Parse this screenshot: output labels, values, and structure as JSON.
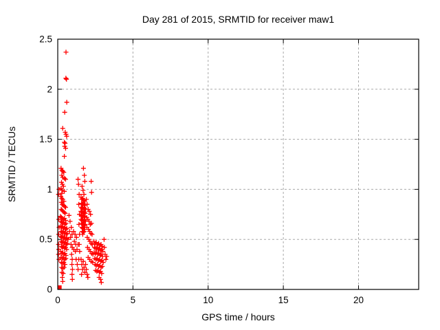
{
  "chart_data": {
    "type": "scatter",
    "title": "Day 281 of 2015, SRMTID for receiver maw1",
    "xlabel": "GPS time / hours",
    "ylabel": "SRMTID / TECUs",
    "xlim": [
      0,
      24
    ],
    "ylim": [
      0,
      2.5
    ],
    "xticks": {
      "values": [
        0,
        5,
        10,
        15,
        20
      ],
      "labels": [
        "0",
        "5",
        "10",
        "15",
        "20"
      ]
    },
    "yticks": {
      "values": [
        0,
        0.5,
        1,
        1.5,
        2,
        2.5
      ],
      "labels": [
        "0",
        "0.5",
        "1",
        "1.5",
        "2",
        "2.5"
      ]
    },
    "grid": true,
    "legend": "none",
    "marker": "plus",
    "marker_color": "#ff0000",
    "grid_color": "#a8a8a8",
    "border_color": "#000000",
    "origin_marker": {
      "type": "filled-square",
      "x": 0.12,
      "y": 0.02
    },
    "points": [
      [
        0.55,
        2.37
      ],
      [
        0.54,
        2.11
      ],
      [
        0.58,
        2.1
      ],
      [
        0.6,
        1.87
      ],
      [
        0.46,
        1.77
      ],
      [
        0.33,
        1.61
      ],
      [
        0.5,
        1.57
      ],
      [
        0.55,
        1.55
      ],
      [
        0.59,
        1.53
      ],
      [
        0.44,
        1.47
      ],
      [
        0.49,
        1.46
      ],
      [
        0.46,
        1.43
      ],
      [
        0.52,
        1.41
      ],
      [
        0.44,
        1.33
      ],
      [
        0.22,
        1.21
      ],
      [
        0.28,
        1.19
      ],
      [
        0.34,
        1.18
      ],
      [
        0.4,
        1.17
      ],
      [
        0.27,
        1.14
      ],
      [
        0.33,
        1.12
      ],
      [
        0.45,
        1.11
      ],
      [
        0.52,
        1.1
      ],
      [
        0.25,
        1.07
      ],
      [
        0.31,
        1.05
      ],
      [
        0.38,
        1.03
      ],
      [
        0.22,
        1.01
      ],
      [
        0.3,
        0.99
      ],
      [
        0.44,
        0.98
      ],
      [
        0.27,
        0.96
      ],
      [
        1.71,
        1.21
      ],
      [
        1.77,
        1.14
      ],
      [
        1.35,
        1.1
      ],
      [
        1.8,
        1.08
      ],
      [
        2.22,
        1.08
      ],
      [
        1.62,
        1.03
      ],
      [
        1.68,
        0.99
      ],
      [
        2.25,
        0.97
      ],
      [
        1.74,
        0.95
      ],
      [
        0.2,
        0.93
      ],
      [
        0.26,
        0.91
      ],
      [
        0.33,
        0.9
      ],
      [
        0.41,
        0.88
      ],
      [
        0.24,
        0.87
      ],
      [
        0.3,
        0.85
      ],
      [
        0.37,
        0.84
      ],
      [
        0.46,
        0.83
      ],
      [
        0.52,
        0.82
      ],
      [
        0.23,
        0.8
      ],
      [
        0.29,
        0.79
      ],
      [
        0.35,
        0.78
      ],
      [
        0.43,
        0.77
      ],
      [
        0.5,
        0.76
      ],
      [
        1.55,
        0.92
      ],
      [
        1.6,
        0.9
      ],
      [
        1.66,
        0.91
      ],
      [
        1.72,
        0.89
      ],
      [
        1.78,
        0.88
      ],
      [
        1.58,
        0.86
      ],
      [
        1.63,
        0.85
      ],
      [
        1.69,
        0.86
      ],
      [
        1.75,
        0.84
      ],
      [
        1.81,
        0.85
      ],
      [
        1.56,
        0.82
      ],
      [
        1.61,
        0.81
      ],
      [
        1.67,
        0.82
      ],
      [
        1.73,
        0.8
      ],
      [
        1.79,
        0.81
      ],
      [
        1.85,
        0.8
      ],
      [
        1.54,
        0.78
      ],
      [
        1.59,
        0.77
      ],
      [
        1.65,
        0.78
      ],
      [
        1.71,
        0.76
      ],
      [
        1.77,
        0.77
      ],
      [
        1.83,
        0.76
      ],
      [
        1.57,
        0.74
      ],
      [
        1.62,
        0.73
      ],
      [
        1.68,
        0.74
      ],
      [
        1.74,
        0.72
      ],
      [
        1.8,
        0.73
      ],
      [
        1.55,
        0.7
      ],
      [
        1.6,
        0.69
      ],
      [
        1.66,
        0.7
      ],
      [
        1.72,
        0.68
      ],
      [
        1.78,
        0.69
      ],
      [
        1.84,
        0.68
      ],
      [
        1.58,
        0.66
      ],
      [
        1.64,
        0.65
      ],
      [
        1.7,
        0.66
      ],
      [
        1.76,
        0.64
      ],
      [
        1.82,
        0.65
      ],
      [
        1.61,
        0.62
      ],
      [
        1.67,
        0.61
      ],
      [
        1.73,
        0.62
      ],
      [
        1.79,
        0.6
      ],
      [
        1.63,
        0.58
      ],
      [
        1.69,
        0.57
      ],
      [
        1.75,
        0.58
      ],
      [
        1.66,
        0.55
      ],
      [
        0.18,
        0.73
      ],
      [
        0.24,
        0.72
      ],
      [
        0.31,
        0.71
      ],
      [
        0.38,
        0.7
      ],
      [
        0.45,
        0.71
      ],
      [
        0.52,
        0.69
      ],
      [
        0.21,
        0.68
      ],
      [
        0.27,
        0.67
      ],
      [
        0.34,
        0.66
      ],
      [
        0.41,
        0.67
      ],
      [
        0.48,
        0.65
      ],
      [
        0.55,
        0.66
      ],
      [
        0.19,
        0.63
      ],
      [
        0.25,
        0.62
      ],
      [
        0.32,
        0.63
      ],
      [
        0.39,
        0.61
      ],
      [
        0.46,
        0.62
      ],
      [
        0.53,
        0.6
      ],
      [
        0.6,
        0.61
      ],
      [
        0.22,
        0.58
      ],
      [
        0.28,
        0.57
      ],
      [
        0.35,
        0.58
      ],
      [
        0.42,
        0.56
      ],
      [
        0.49,
        0.57
      ],
      [
        0.56,
        0.55
      ],
      [
        0.63,
        0.56
      ],
      [
        0.2,
        0.53
      ],
      [
        0.26,
        0.52
      ],
      [
        0.33,
        0.53
      ],
      [
        0.4,
        0.51
      ],
      [
        0.47,
        0.52
      ],
      [
        0.54,
        0.5
      ],
      [
        0.61,
        0.51
      ],
      [
        0.68,
        0.5
      ],
      [
        0.23,
        0.48
      ],
      [
        0.29,
        0.47
      ],
      [
        0.36,
        0.48
      ],
      [
        0.43,
        0.46
      ],
      [
        0.5,
        0.47
      ],
      [
        0.57,
        0.45
      ],
      [
        0.64,
        0.46
      ],
      [
        0.25,
        0.43
      ],
      [
        0.31,
        0.42
      ],
      [
        0.38,
        0.43
      ],
      [
        0.45,
        0.41
      ],
      [
        0.52,
        0.42
      ],
      [
        0.59,
        0.4
      ],
      [
        0.75,
        0.74
      ],
      [
        0.82,
        0.68
      ],
      [
        0.9,
        0.62
      ],
      [
        0.78,
        0.58
      ],
      [
        0.85,
        0.52
      ],
      [
        0.95,
        0.55
      ],
      [
        1.05,
        0.58
      ],
      [
        1.15,
        0.55
      ],
      [
        1.25,
        0.52
      ],
      [
        1.1,
        0.48
      ],
      [
        1.2,
        0.45
      ],
      [
        0.88,
        0.45
      ],
      [
        0.97,
        0.42
      ],
      [
        1.07,
        0.4
      ],
      [
        1.17,
        0.38
      ],
      [
        1.28,
        0.4
      ],
      [
        1.35,
        0.45
      ],
      [
        1.38,
        1.05
      ],
      [
        1.42,
        0.95
      ],
      [
        1.4,
        0.85
      ],
      [
        1.44,
        0.75
      ],
      [
        1.41,
        0.65
      ],
      [
        1.45,
        0.55
      ],
      [
        1.43,
        0.45
      ],
      [
        1.46,
        0.38
      ],
      [
        1.9,
        0.9
      ],
      [
        1.95,
        0.85
      ],
      [
        2.02,
        0.8
      ],
      [
        2.1,
        0.78
      ],
      [
        2.18,
        0.75
      ],
      [
        1.92,
        0.72
      ],
      [
        2.0,
        0.7
      ],
      [
        2.08,
        0.68
      ],
      [
        2.16,
        0.65
      ],
      [
        2.24,
        0.66
      ],
      [
        1.94,
        0.62
      ],
      [
        2.04,
        0.6
      ],
      [
        2.12,
        0.58
      ],
      [
        2.2,
        0.56
      ],
      [
        2.28,
        0.55
      ],
      [
        1.96,
        0.52
      ],
      [
        2.06,
        0.5
      ],
      [
        2.14,
        0.48
      ],
      [
        2.22,
        0.46
      ],
      [
        2.3,
        0.45
      ],
      [
        1.98,
        0.42
      ],
      [
        2.08,
        0.4
      ],
      [
        2.16,
        0.38
      ],
      [
        2.26,
        0.36
      ],
      [
        2.34,
        0.35
      ],
      [
        2.02,
        0.32
      ],
      [
        2.12,
        0.3
      ],
      [
        2.22,
        0.28
      ],
      [
        2.32,
        0.27
      ],
      [
        2.4,
        0.48
      ],
      [
        2.48,
        0.46
      ],
      [
        2.56,
        0.47
      ],
      [
        2.64,
        0.45
      ],
      [
        2.72,
        0.46
      ],
      [
        2.8,
        0.44
      ],
      [
        2.88,
        0.45
      ],
      [
        2.96,
        0.43
      ],
      [
        2.44,
        0.42
      ],
      [
        2.52,
        0.41
      ],
      [
        2.6,
        0.42
      ],
      [
        2.68,
        0.4
      ],
      [
        2.76,
        0.41
      ],
      [
        2.84,
        0.39
      ],
      [
        2.92,
        0.4
      ],
      [
        3.0,
        0.38
      ],
      [
        2.42,
        0.37
      ],
      [
        2.5,
        0.36
      ],
      [
        2.58,
        0.37
      ],
      [
        2.66,
        0.35
      ],
      [
        2.74,
        0.36
      ],
      [
        2.82,
        0.34
      ],
      [
        2.9,
        0.35
      ],
      [
        2.98,
        0.33
      ],
      [
        2.46,
        0.31
      ],
      [
        2.54,
        0.3
      ],
      [
        2.62,
        0.31
      ],
      [
        2.7,
        0.29
      ],
      [
        2.78,
        0.3
      ],
      [
        2.86,
        0.28
      ],
      [
        2.94,
        0.29
      ],
      [
        3.02,
        0.27
      ],
      [
        2.48,
        0.25
      ],
      [
        2.56,
        0.24
      ],
      [
        2.64,
        0.25
      ],
      [
        2.72,
        0.23
      ],
      [
        2.8,
        0.24
      ],
      [
        2.88,
        0.22
      ],
      [
        2.96,
        0.23
      ],
      [
        2.52,
        0.19
      ],
      [
        2.6,
        0.18
      ],
      [
        2.68,
        0.19
      ],
      [
        2.76,
        0.17
      ],
      [
        2.84,
        0.18
      ],
      [
        2.92,
        0.16
      ],
      [
        2.75,
        0.12
      ],
      [
        2.85,
        0.1
      ],
      [
        2.9,
        0.07
      ],
      [
        3.08,
        0.5
      ],
      [
        3.1,
        0.42
      ],
      [
        3.15,
        0.35
      ],
      [
        3.2,
        0.3
      ],
      [
        3.25,
        0.33
      ],
      [
        0.2,
        0.38
      ],
      [
        0.27,
        0.36
      ],
      [
        0.34,
        0.37
      ],
      [
        0.41,
        0.35
      ],
      [
        0.48,
        0.36
      ],
      [
        0.55,
        0.34
      ],
      [
        0.22,
        0.32
      ],
      [
        0.3,
        0.31
      ],
      [
        0.38,
        0.32
      ],
      [
        0.46,
        0.3
      ],
      [
        0.54,
        0.31
      ],
      [
        0.24,
        0.27
      ],
      [
        0.32,
        0.26
      ],
      [
        0.4,
        0.27
      ],
      [
        0.48,
        0.25
      ],
      [
        0.26,
        0.22
      ],
      [
        0.34,
        0.21
      ],
      [
        0.42,
        0.22
      ],
      [
        0.28,
        0.17
      ],
      [
        0.36,
        0.16
      ],
      [
        0.3,
        0.12
      ],
      [
        0.33,
        0.08
      ],
      [
        0.92,
        0.35
      ],
      [
        0.96,
        0.3
      ],
      [
        0.94,
        0.25
      ],
      [
        0.98,
        0.2
      ],
      [
        0.95,
        0.15
      ],
      [
        0.97,
        0.1
      ],
      [
        1.55,
        0.3
      ],
      [
        1.6,
        0.25
      ],
      [
        1.65,
        0.2
      ],
      [
        1.58,
        0.15
      ],
      [
        1.7,
        0.28
      ],
      [
        1.75,
        0.22
      ],
      [
        1.8,
        0.17
      ],
      [
        1.85,
        0.25
      ],
      [
        1.9,
        0.2
      ],
      [
        1.95,
        0.15
      ],
      [
        2.0,
        0.12
      ],
      [
        1.22,
        0.3
      ],
      [
        1.3,
        0.25
      ],
      [
        1.35,
        0.2
      ],
      [
        1.4,
        0.3
      ],
      [
        0.05,
        0.45
      ],
      [
        0.07,
        0.4
      ],
      [
        0.05,
        0.35
      ],
      [
        0.08,
        0.3
      ],
      [
        0.06,
        0.55
      ],
      [
        0.09,
        0.62
      ],
      [
        0.07,
        0.7
      ],
      [
        0.05,
        0.95
      ],
      [
        0.08,
        1.0
      ]
    ]
  }
}
